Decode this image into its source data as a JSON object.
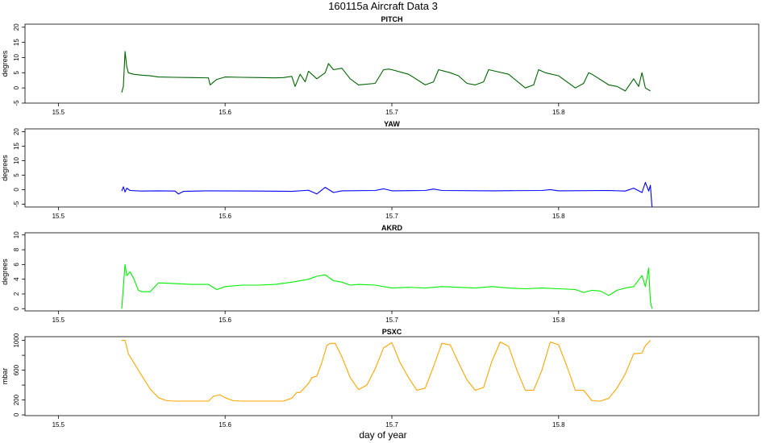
{
  "figure": {
    "title": "160115a    Aircraft Data 3",
    "xlabel": "day of year"
  },
  "chart_data": [
    {
      "type": "line",
      "title": "PITCH",
      "ylabel": "degrees",
      "color": "#006400",
      "xlim": [
        15.48,
        15.92
      ],
      "ylim": [
        -5,
        21
      ],
      "xticks": [
        15.5,
        15.6,
        15.7,
        15.8
      ],
      "xtick_labels": [
        "15.5",
        "15.6",
        "15.7",
        "15.8"
      ],
      "yticks": [
        -5,
        0,
        5,
        10,
        15,
        20
      ],
      "ytick_labels": [
        "-5",
        "0",
        "5",
        "10",
        "15",
        "20"
      ],
      "series": [
        {
          "x": [
            15.538,
            15.539,
            15.54,
            15.541,
            15.542,
            15.545,
            15.55,
            15.555,
            15.56,
            15.57,
            15.58,
            15.59,
            15.591,
            15.595,
            15.6,
            15.61,
            15.62,
            15.63,
            15.635,
            15.64,
            15.642,
            15.645,
            15.648,
            15.65,
            15.655,
            15.66,
            15.662,
            15.665,
            15.67,
            15.675,
            15.68,
            15.69,
            15.695,
            15.698,
            15.7,
            15.71,
            15.72,
            15.725,
            15.728,
            15.735,
            15.74,
            15.745,
            15.75,
            15.755,
            15.758,
            15.762,
            15.77,
            15.78,
            15.785,
            15.788,
            15.792,
            15.8,
            15.81,
            15.815,
            15.818,
            15.82,
            15.83,
            15.835,
            15.84,
            15.845,
            15.848,
            15.85,
            15.852,
            15.855
          ],
          "y": [
            -1.5,
            0.5,
            12,
            7,
            5,
            4.5,
            4.2,
            4.0,
            3.6,
            3.5,
            3.4,
            3.3,
            1.0,
            2.8,
            3.6,
            3.5,
            3.4,
            3.3,
            3.4,
            3.8,
            0.5,
            4.5,
            2.0,
            5.5,
            3.0,
            5.0,
            8.0,
            6.0,
            6.5,
            3.0,
            1.0,
            1.5,
            6.0,
            6.2,
            6.0,
            4.5,
            1.0,
            2.0,
            6.0,
            5.0,
            4.0,
            1.5,
            1.0,
            2.0,
            6.0,
            5.5,
            4.5,
            0.0,
            1.0,
            6.0,
            5.0,
            4.0,
            0.0,
            1.5,
            5.0,
            4.5,
            1.0,
            0.5,
            -1.0,
            3.0,
            0.5,
            5.0,
            0.0,
            -1.0
          ]
        }
      ]
    },
    {
      "type": "line",
      "title": "YAW",
      "ylabel": "degrees",
      "color": "#0000ff",
      "xlim": [
        15.48,
        15.92
      ],
      "ylim": [
        -6,
        21
      ],
      "xticks": [
        15.5,
        15.6,
        15.7,
        15.8
      ],
      "xtick_labels": [
        "15.5",
        "15.6",
        "15.7",
        "15.8"
      ],
      "yticks": [
        -5,
        0,
        5,
        10,
        15,
        20
      ],
      "ytick_labels": [
        "-5",
        "0",
        "5",
        "10",
        "15",
        "20"
      ],
      "series": [
        {
          "x": [
            15.538,
            15.539,
            15.54,
            15.541,
            15.543,
            15.55,
            15.56,
            15.57,
            15.572,
            15.575,
            15.59,
            15.62,
            15.64,
            15.65,
            15.655,
            15.66,
            15.665,
            15.67,
            15.69,
            15.695,
            15.7,
            15.72,
            15.725,
            15.73,
            15.76,
            15.79,
            15.795,
            15.8,
            15.83,
            15.84,
            15.845,
            15.85,
            15.852,
            15.854,
            15.855,
            15.856
          ],
          "y": [
            -0.5,
            1.0,
            -0.8,
            0.5,
            -0.3,
            -0.5,
            -0.4,
            -0.5,
            -1.5,
            -0.6,
            -0.4,
            -0.5,
            -0.6,
            -0.2,
            -1.5,
            0.8,
            -1.0,
            -0.4,
            -0.3,
            0.3,
            -0.4,
            -0.3,
            0.2,
            -0.3,
            -0.4,
            -0.3,
            0.0,
            -0.4,
            -0.3,
            -0.5,
            0.5,
            -1.0,
            2.5,
            -0.5,
            1.5,
            -6.0
          ]
        }
      ]
    },
    {
      "type": "line",
      "title": "AKRD",
      "ylabel": "degrees",
      "color": "#00ee00",
      "xlim": [
        15.48,
        15.92
      ],
      "ylim": [
        -0.3,
        10.3
      ],
      "xticks": [
        15.5,
        15.6,
        15.7,
        15.8
      ],
      "xtick_labels": [
        "15.5",
        "15.6",
        "15.7",
        "15.8"
      ],
      "yticks": [
        0,
        2,
        4,
        6,
        8,
        10
      ],
      "ytick_labels": [
        "0",
        "2",
        "4",
        "6",
        "8",
        "10"
      ],
      "series": [
        {
          "x": [
            15.538,
            15.539,
            15.54,
            15.541,
            15.543,
            15.545,
            15.548,
            15.55,
            15.555,
            15.56,
            15.57,
            15.58,
            15.59,
            15.595,
            15.6,
            15.61,
            15.62,
            15.63,
            15.64,
            15.65,
            15.655,
            15.66,
            15.665,
            15.67,
            15.675,
            15.68,
            15.69,
            15.7,
            15.71,
            15.72,
            15.73,
            15.74,
            15.75,
            15.76,
            15.77,
            15.78,
            15.79,
            15.8,
            15.81,
            15.815,
            15.82,
            15.825,
            15.83,
            15.835,
            15.84,
            15.845,
            15.85,
            15.852,
            15.854,
            15.855,
            15.856
          ],
          "y": [
            0.0,
            3.0,
            6.0,
            4.5,
            5.0,
            4.2,
            2.5,
            2.3,
            2.3,
            3.5,
            3.4,
            3.3,
            3.3,
            2.6,
            3.0,
            3.2,
            3.2,
            3.3,
            3.6,
            4.0,
            4.4,
            4.6,
            3.8,
            3.6,
            3.2,
            3.3,
            3.2,
            2.8,
            2.9,
            2.8,
            3.0,
            2.9,
            2.8,
            3.0,
            2.8,
            2.7,
            2.8,
            2.7,
            2.6,
            2.2,
            2.5,
            2.4,
            1.8,
            2.5,
            2.8,
            3.0,
            4.5,
            3.0,
            5.5,
            1.0,
            0.0
          ]
        }
      ]
    },
    {
      "type": "line",
      "title": "PSXC",
      "ylabel": "mbar",
      "color": "#ffa500",
      "xlim": [
        15.48,
        15.92
      ],
      "ylim": [
        -10,
        1050
      ],
      "xticks": [
        15.5,
        15.6,
        15.7,
        15.8
      ],
      "xtick_labels": [
        "15.5",
        "15.6",
        "15.7",
        "15.8"
      ],
      "yticks": [
        0,
        200,
        400,
        600,
        800,
        1000
      ],
      "ytick_labels": [
        "0",
        "200",
        "",
        "600",
        "",
        "1000"
      ],
      "series": [
        {
          "x": [
            15.538,
            15.54,
            15.542,
            15.548,
            15.555,
            15.56,
            15.565,
            15.57,
            15.575,
            15.58,
            15.585,
            15.59,
            15.593,
            15.597,
            15.6,
            15.605,
            15.61,
            15.62,
            15.63,
            15.635,
            15.64,
            15.643,
            15.645,
            15.65,
            15.652,
            15.655,
            15.658,
            15.661,
            15.663,
            15.666,
            15.67,
            15.675,
            15.68,
            15.685,
            15.69,
            15.695,
            15.7,
            15.705,
            15.71,
            15.715,
            15.72,
            15.725,
            15.73,
            15.735,
            15.74,
            15.745,
            15.75,
            15.755,
            15.76,
            15.765,
            15.77,
            15.775,
            15.78,
            15.785,
            15.79,
            15.795,
            15.8,
            15.805,
            15.81,
            15.815,
            15.82,
            15.825,
            15.83,
            15.835,
            15.84,
            15.845,
            15.85,
            15.852,
            15.855
          ],
          "y": [
            1000,
            1000,
            820,
            600,
            350,
            230,
            190,
            185,
            185,
            185,
            185,
            185,
            250,
            270,
            230,
            190,
            185,
            185,
            185,
            185,
            225,
            300,
            300,
            420,
            500,
            520,
            700,
            930,
            960,
            960,
            780,
            500,
            340,
            400,
            620,
            900,
            970,
            700,
            500,
            330,
            360,
            650,
            960,
            940,
            700,
            470,
            330,
            370,
            720,
            980,
            920,
            600,
            330,
            330,
            600,
            980,
            940,
            650,
            330,
            330,
            190,
            185,
            220,
            360,
            550,
            820,
            830,
            930,
            1000
          ]
        }
      ]
    }
  ]
}
